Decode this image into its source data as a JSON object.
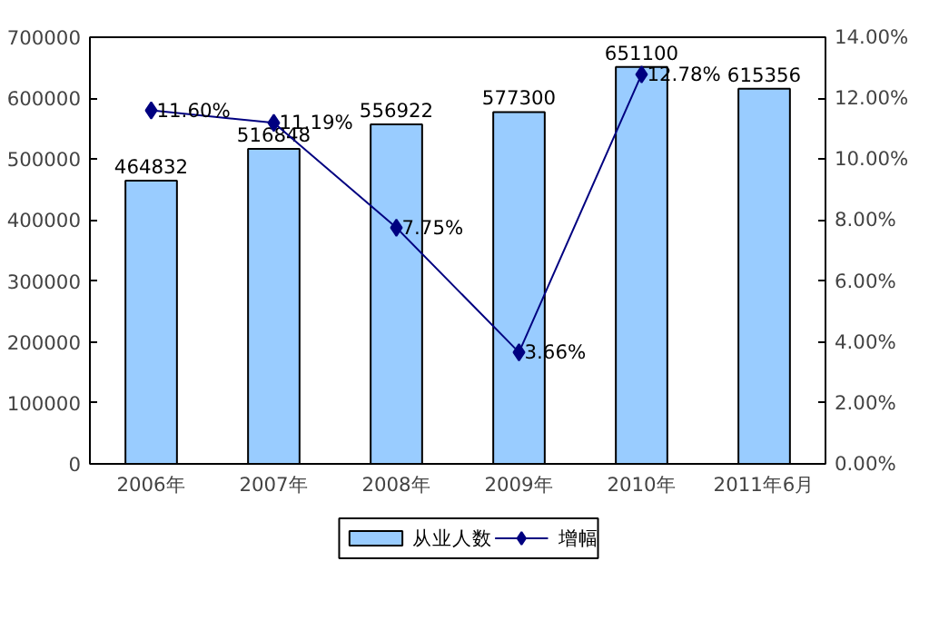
{
  "chart_data": {
    "type": "bar",
    "categories": [
      "2006年",
      "2007年",
      "2008年",
      "2009年",
      "2010年",
      "2011年6月"
    ],
    "series": [
      {
        "name": "从业人数",
        "color": "#99ccff",
        "values": [
          464832,
          516848,
          556922,
          577300,
          651100,
          615356
        ]
      },
      {
        "name": "增幅",
        "type": "line",
        "axis": "y2",
        "color": "#000080",
        "marker": "diamond",
        "values": [
          11.6,
          11.19,
          7.75,
          3.66,
          12.78,
          null
        ],
        "value_labels": [
          "11.60%",
          "11.19%",
          "7.75%",
          "3.66%",
          "12.78%",
          null
        ]
      }
    ],
    "data_labels": true,
    "ylim": [
      0,
      700000
    ],
    "yticks": [
      0,
      100000,
      200000,
      300000,
      400000,
      500000,
      600000,
      700000
    ],
    "y2lim": [
      0,
      14
    ],
    "y2ticks": [
      {
        "value": 0,
        "label": "0.00%"
      },
      {
        "value": 2,
        "label": "2.00%"
      },
      {
        "value": 4,
        "label": "4.00%"
      },
      {
        "value": 6,
        "label": "6.00%"
      },
      {
        "value": 8,
        "label": "8.00%"
      },
      {
        "value": 10,
        "label": "10.00%"
      },
      {
        "value": 12,
        "label": "12.00%"
      },
      {
        "value": 14,
        "label": "14.00%"
      }
    ],
    "grid": false,
    "legend": "bottom"
  }
}
